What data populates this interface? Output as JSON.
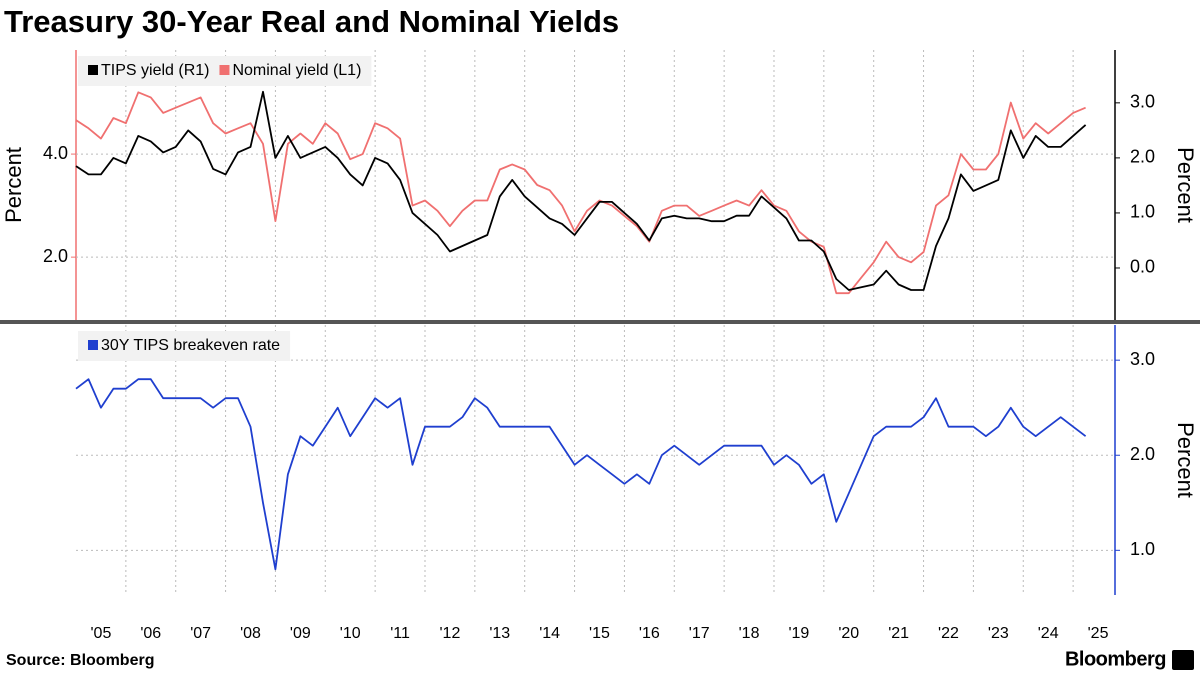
{
  "title": "Treasury 30-Year Real and Nominal Yields",
  "source": "Source: Bloomberg",
  "brand": "Bloomberg",
  "chart_data": [
    {
      "type": "line",
      "ylabel": "Percent",
      "y2label": "Percent",
      "xlim": [
        2005,
        2025.84
      ],
      "ylim": [
        0.78,
        6.02
      ],
      "yticks": [
        {
          "value": 2,
          "label": "2.0"
        },
        {
          "value": 4,
          "label": "4.0"
        }
      ],
      "y2lim": [
        -0.945,
        3.96
      ],
      "y2ticks": [
        {
          "value": 0,
          "label": "0.0"
        },
        {
          "value": 1,
          "label": "1.0"
        },
        {
          "value": 2,
          "label": "2.0"
        },
        {
          "value": 3,
          "label": "3.0"
        }
      ],
      "grid": true,
      "x": [
        2005.0,
        2005.25,
        2005.5,
        2005.75,
        2006.0,
        2006.25,
        2006.5,
        2006.75,
        2007.0,
        2007.25,
        2007.5,
        2007.75,
        2008.0,
        2008.25,
        2008.5,
        2008.75,
        2009.0,
        2009.25,
        2009.5,
        2009.75,
        2010.0,
        2010.25,
        2010.5,
        2010.75,
        2011.0,
        2011.25,
        2011.5,
        2011.75,
        2012.0,
        2012.25,
        2012.5,
        2012.75,
        2013.0,
        2013.25,
        2013.5,
        2013.75,
        2014.0,
        2014.25,
        2014.5,
        2014.75,
        2015.0,
        2015.25,
        2015.5,
        2015.75,
        2016.0,
        2016.25,
        2016.5,
        2016.75,
        2017.0,
        2017.25,
        2017.5,
        2017.75,
        2018.0,
        2018.25,
        2018.5,
        2018.75,
        2019.0,
        2019.25,
        2019.5,
        2019.75,
        2020.0,
        2020.25,
        2020.5,
        2020.75,
        2021.0,
        2021.25,
        2021.5,
        2021.75,
        2022.0,
        2022.25,
        2022.5,
        2022.75,
        2023.0,
        2023.25,
        2023.5,
        2023.75,
        2024.0,
        2024.25,
        2024.5,
        2024.75,
        2025.0,
        2025.25
      ],
      "series": [
        {
          "name": "Nominal yield (L1)",
          "color": "#f07070",
          "axis": "y",
          "values": [
            4.66,
            4.5,
            4.3,
            4.7,
            4.6,
            5.2,
            5.1,
            4.8,
            4.9,
            5.0,
            5.1,
            4.6,
            4.4,
            4.5,
            4.6,
            4.2,
            2.7,
            4.2,
            4.4,
            4.2,
            4.6,
            4.4,
            3.9,
            4.0,
            4.6,
            4.5,
            4.3,
            3.0,
            3.1,
            2.9,
            2.6,
            2.9,
            3.1,
            3.1,
            3.7,
            3.8,
            3.7,
            3.4,
            3.3,
            3.0,
            2.5,
            2.9,
            3.1,
            3.0,
            2.8,
            2.6,
            2.3,
            2.9,
            3.0,
            3.0,
            2.8,
            2.9,
            3.0,
            3.1,
            3.0,
            3.3,
            3.0,
            2.9,
            2.5,
            2.3,
            2.2,
            1.3,
            1.3,
            1.6,
            1.9,
            2.3,
            2.0,
            1.9,
            2.1,
            3.0,
            3.2,
            4.0,
            3.7,
            3.7,
            4.0,
            5.0,
            4.3,
            4.6,
            4.4,
            4.6,
            4.8,
            4.9
          ]
        },
        {
          "name": "TIPS yield (R1)",
          "color": "#000000",
          "axis": "y2",
          "values": [
            1.85,
            1.7,
            1.7,
            2.0,
            1.9,
            2.4,
            2.3,
            2.1,
            2.2,
            2.5,
            2.3,
            1.8,
            1.7,
            2.1,
            2.2,
            3.2,
            2.0,
            2.4,
            2.0,
            2.1,
            2.2,
            2.0,
            1.7,
            1.5,
            2.0,
            1.9,
            1.6,
            1.0,
            0.8,
            0.6,
            0.3,
            0.4,
            0.5,
            0.6,
            1.3,
            1.6,
            1.3,
            1.1,
            0.9,
            0.8,
            0.6,
            0.9,
            1.2,
            1.2,
            1.0,
            0.8,
            0.5,
            0.9,
            0.95,
            0.9,
            0.9,
            0.85,
            0.85,
            0.95,
            0.95,
            1.3,
            1.1,
            0.9,
            0.5,
            0.5,
            0.3,
            -0.2,
            -0.4,
            -0.35,
            -0.3,
            -0.05,
            -0.3,
            -0.4,
            -0.4,
            0.4,
            0.9,
            1.7,
            1.4,
            1.5,
            1.6,
            2.5,
            2.0,
            2.4,
            2.2,
            2.2,
            2.4,
            2.6
          ]
        }
      ]
    },
    {
      "type": "line",
      "y2label": "Percent",
      "xlim": [
        2005,
        2025.84
      ],
      "xticks": [
        {
          "value": 2005,
          "label": "'05"
        },
        {
          "value": 2006,
          "label": "'06"
        },
        {
          "value": 2007,
          "label": "'07"
        },
        {
          "value": 2008,
          "label": "'08"
        },
        {
          "value": 2009,
          "label": "'09"
        },
        {
          "value": 2010,
          "label": "'10"
        },
        {
          "value": 2011,
          "label": "'11"
        },
        {
          "value": 2012,
          "label": "'12"
        },
        {
          "value": 2013,
          "label": "'13"
        },
        {
          "value": 2014,
          "label": "'14"
        },
        {
          "value": 2015,
          "label": "'15"
        },
        {
          "value": 2016,
          "label": "'16"
        },
        {
          "value": 2017,
          "label": "'17"
        },
        {
          "value": 2018,
          "label": "'18"
        },
        {
          "value": 2019,
          "label": "'19"
        },
        {
          "value": 2020,
          "label": "'20"
        },
        {
          "value": 2021,
          "label": "'21"
        },
        {
          "value": 2022,
          "label": "'22"
        },
        {
          "value": 2023,
          "label": "'23"
        },
        {
          "value": 2024,
          "label": "'24"
        },
        {
          "value": 2025,
          "label": "'25"
        }
      ],
      "y2lim": [
        0.53,
        3.37
      ],
      "y2ticks": [
        {
          "value": 1,
          "label": "1.0"
        },
        {
          "value": 2,
          "label": "2.0"
        },
        {
          "value": 3,
          "label": "3.0"
        }
      ],
      "grid": true,
      "x": [
        2005.0,
        2005.25,
        2005.5,
        2005.75,
        2006.0,
        2006.25,
        2006.5,
        2006.75,
        2007.0,
        2007.25,
        2007.5,
        2007.75,
        2008.0,
        2008.25,
        2008.5,
        2008.75,
        2009.0,
        2009.25,
        2009.5,
        2009.75,
        2010.0,
        2010.25,
        2010.5,
        2010.75,
        2011.0,
        2011.25,
        2011.5,
        2011.75,
        2012.0,
        2012.25,
        2012.5,
        2012.75,
        2013.0,
        2013.25,
        2013.5,
        2013.75,
        2014.0,
        2014.25,
        2014.5,
        2014.75,
        2015.0,
        2015.25,
        2015.5,
        2015.75,
        2016.0,
        2016.25,
        2016.5,
        2016.75,
        2017.0,
        2017.25,
        2017.5,
        2017.75,
        2018.0,
        2018.25,
        2018.5,
        2018.75,
        2019.0,
        2019.25,
        2019.5,
        2019.75,
        2020.0,
        2020.25,
        2020.5,
        2020.75,
        2021.0,
        2021.25,
        2021.5,
        2021.75,
        2022.0,
        2022.25,
        2022.5,
        2022.75,
        2023.0,
        2023.25,
        2023.5,
        2023.75,
        2024.0,
        2024.25,
        2024.5,
        2024.75,
        2025.0,
        2025.25
      ],
      "series": [
        {
          "name": "30Y TIPS breakeven rate",
          "color": "#1f3fcf",
          "axis": "y2",
          "values": [
            2.7,
            2.8,
            2.5,
            2.7,
            2.7,
            2.8,
            2.8,
            2.6,
            2.6,
            2.6,
            2.6,
            2.5,
            2.6,
            2.6,
            2.3,
            1.5,
            0.8,
            1.8,
            2.2,
            2.1,
            2.3,
            2.5,
            2.2,
            2.4,
            2.6,
            2.5,
            2.6,
            1.9,
            2.3,
            2.3,
            2.3,
            2.4,
            2.6,
            2.5,
            2.3,
            2.3,
            2.3,
            2.3,
            2.3,
            2.1,
            1.9,
            2.0,
            1.9,
            1.8,
            1.7,
            1.8,
            1.7,
            2.0,
            2.1,
            2.0,
            1.9,
            2.0,
            2.1,
            2.1,
            2.1,
            2.1,
            1.9,
            2.0,
            1.9,
            1.7,
            1.8,
            1.3,
            1.6,
            1.9,
            2.2,
            2.3,
            2.3,
            2.3,
            2.4,
            2.6,
            2.3,
            2.3,
            2.3,
            2.2,
            2.3,
            2.5,
            2.3,
            2.2,
            2.3,
            2.4,
            2.3,
            2.2
          ]
        }
      ]
    }
  ]
}
